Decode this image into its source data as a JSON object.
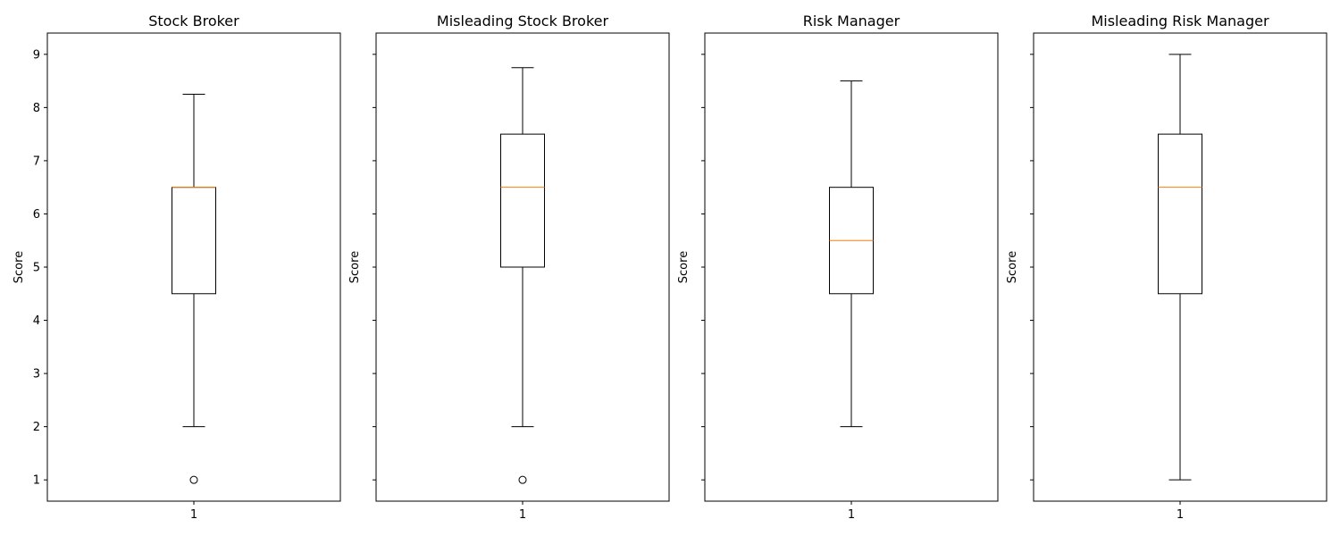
{
  "chart_data": [
    {
      "type": "box",
      "title": "Stock Broker",
      "ylabel": "Score",
      "xlabel": "",
      "categories": [
        "1"
      ],
      "ylim": [
        0.6,
        9.4
      ],
      "yticks": [
        "1",
        "2",
        "3",
        "4",
        "5",
        "6",
        "7",
        "8",
        "9"
      ],
      "show_ytick_labels": true,
      "box": {
        "whisker_low": 2,
        "q1": 4.5,
        "median": 6.5,
        "q3": 6.5,
        "whisker_high": 8.25,
        "outliers": [
          1
        ]
      }
    },
    {
      "type": "box",
      "title": "Misleading Stock Broker",
      "ylabel": "Score",
      "xlabel": "",
      "categories": [
        "1"
      ],
      "ylim": [
        0.6,
        9.4
      ],
      "yticks": [
        "1",
        "2",
        "3",
        "4",
        "5",
        "6",
        "7",
        "8",
        "9"
      ],
      "show_ytick_labels": false,
      "box": {
        "whisker_low": 2,
        "q1": 5,
        "median": 6.5,
        "q3": 7.5,
        "whisker_high": 8.75,
        "outliers": [
          1
        ]
      }
    },
    {
      "type": "box",
      "title": "Risk Manager",
      "ylabel": "Score",
      "xlabel": "",
      "categories": [
        "1"
      ],
      "ylim": [
        0.6,
        9.4
      ],
      "yticks": [
        "1",
        "2",
        "3",
        "4",
        "5",
        "6",
        "7",
        "8",
        "9"
      ],
      "show_ytick_labels": false,
      "box": {
        "whisker_low": 2,
        "q1": 4.5,
        "median": 5.5,
        "q3": 6.5,
        "whisker_high": 8.5,
        "outliers": []
      }
    },
    {
      "type": "box",
      "title": "Misleading Risk Manager",
      "ylabel": "Score",
      "xlabel": "",
      "categories": [
        "1"
      ],
      "ylim": [
        0.6,
        9.4
      ],
      "yticks": [
        "1",
        "2",
        "3",
        "4",
        "5",
        "6",
        "7",
        "8",
        "9"
      ],
      "show_ytick_labels": false,
      "box": {
        "whisker_low": 1,
        "q1": 4.5,
        "median": 6.5,
        "q3": 7.5,
        "whisker_high": 9,
        "outliers": []
      }
    }
  ],
  "colors": {
    "box": "#000000",
    "median": "#ff7f0e",
    "background": "#ffffff"
  }
}
